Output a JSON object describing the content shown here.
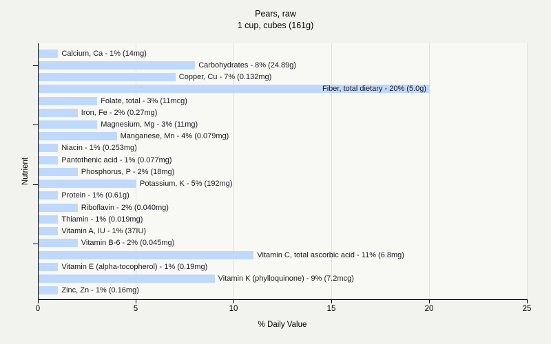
{
  "chart_data": {
    "type": "bar",
    "orientation": "horizontal",
    "title": "Pears, raw",
    "subtitle": "1 cup, cubes (161g)",
    "xlabel": "% Daily Value",
    "ylabel": "Nutrient",
    "xlim": [
      0,
      25
    ],
    "xticks": [
      0,
      5,
      10,
      15,
      20,
      25
    ],
    "ytick_rows": [
      1,
      6,
      11,
      16
    ],
    "grid": "vertical",
    "legend": "none",
    "label_format": "{name} - {percent}% ({amount})",
    "colors": {
      "bar": "#bfd9fc",
      "grid": "#e2e2dc",
      "axis": "#000000",
      "text": "#1a1a24",
      "figure_bg": "#f2f2ee",
      "plot_bg": "#f8f8f4"
    },
    "items": [
      {
        "name": "Calcium, Ca",
        "percent": 1,
        "amount": "14mg"
      },
      {
        "name": "Carbohydrates",
        "percent": 8,
        "amount": "24.89g"
      },
      {
        "name": "Copper, Cu",
        "percent": 7,
        "amount": "0.132mg"
      },
      {
        "name": "Fiber, total dietary",
        "percent": 20,
        "amount": "5.0g"
      },
      {
        "name": "Folate, total",
        "percent": 3,
        "amount": "11mcg"
      },
      {
        "name": "Iron, Fe",
        "percent": 2,
        "amount": "0.27mg"
      },
      {
        "name": "Magnesium, Mg",
        "percent": 3,
        "amount": "11mg"
      },
      {
        "name": "Manganese, Mn",
        "percent": 4,
        "amount": "0.079mg"
      },
      {
        "name": "Niacin",
        "percent": 1,
        "amount": "0.253mg"
      },
      {
        "name": "Pantothenic acid",
        "percent": 1,
        "amount": "0.077mg"
      },
      {
        "name": "Phosphorus, P",
        "percent": 2,
        "amount": "18mg"
      },
      {
        "name": "Potassium, K",
        "percent": 5,
        "amount": "192mg"
      },
      {
        "name": "Protein",
        "percent": 1,
        "amount": "0.61g"
      },
      {
        "name": "Riboflavin",
        "percent": 2,
        "amount": "0.040mg"
      },
      {
        "name": "Thiamin",
        "percent": 1,
        "amount": "0.019mg"
      },
      {
        "name": "Vitamin A, IU",
        "percent": 1,
        "amount": "37IU"
      },
      {
        "name": "Vitamin B-6",
        "percent": 2,
        "amount": "0.045mg"
      },
      {
        "name": "Vitamin C, total ascorbic acid",
        "percent": 11,
        "amount": "6.8mg"
      },
      {
        "name": "Vitamin E (alpha-tocopherol)",
        "percent": 1,
        "amount": "0.19mg"
      },
      {
        "name": "Vitamin K (phylloquinone)",
        "percent": 9,
        "amount": "7.2mcg"
      },
      {
        "name": "Zinc, Zn",
        "percent": 1,
        "amount": "0.16mg"
      }
    ]
  }
}
